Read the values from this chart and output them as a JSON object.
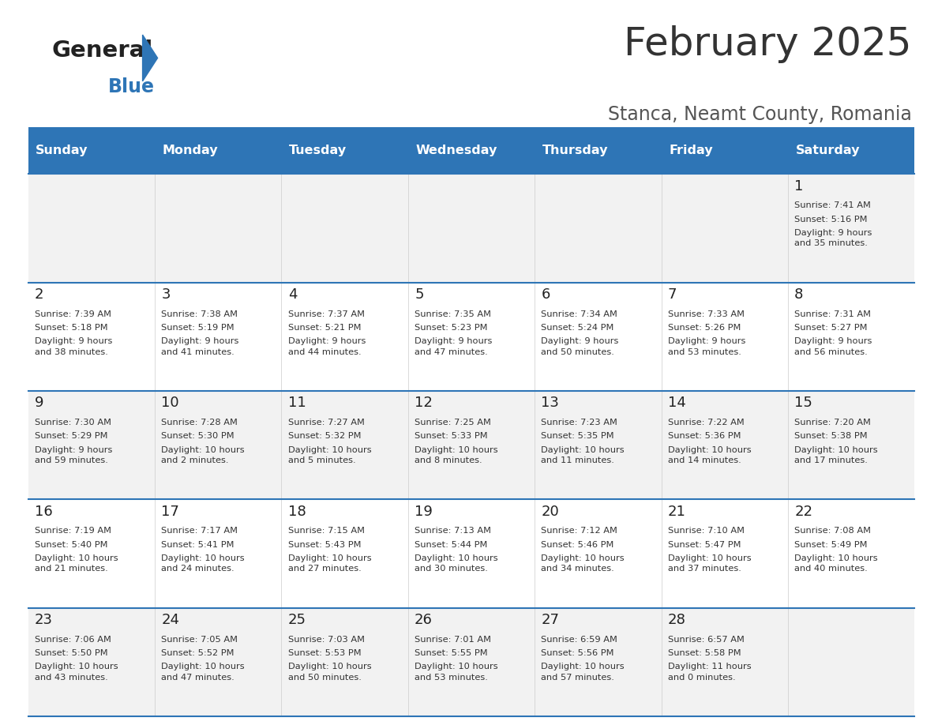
{
  "title": "February 2025",
  "subtitle": "Stanca, Neamt County, Romania",
  "header_bg": "#2E75B6",
  "header_text_color": "#FFFFFF",
  "days_of_week": [
    "Sunday",
    "Monday",
    "Tuesday",
    "Wednesday",
    "Thursday",
    "Friday",
    "Saturday"
  ],
  "cell_bg_even": "#F2F2F2",
  "cell_bg_odd": "#FFFFFF",
  "cell_text_color": "#333333",
  "grid_line_color": "#2E75B6",
  "title_color": "#333333",
  "subtitle_color": "#555555",
  "logo_general_color": "#222222",
  "logo_blue_color": "#2E75B6",
  "calendar": [
    [
      null,
      null,
      null,
      null,
      null,
      null,
      {
        "day": "1",
        "sunrise": "7:41 AM",
        "sunset": "5:16 PM",
        "daylight": "9 hours\nand 35 minutes."
      }
    ],
    [
      {
        "day": "2",
        "sunrise": "7:39 AM",
        "sunset": "5:18 PM",
        "daylight": "9 hours\nand 38 minutes."
      },
      {
        "day": "3",
        "sunrise": "7:38 AM",
        "sunset": "5:19 PM",
        "daylight": "9 hours\nand 41 minutes."
      },
      {
        "day": "4",
        "sunrise": "7:37 AM",
        "sunset": "5:21 PM",
        "daylight": "9 hours\nand 44 minutes."
      },
      {
        "day": "5",
        "sunrise": "7:35 AM",
        "sunset": "5:23 PM",
        "daylight": "9 hours\nand 47 minutes."
      },
      {
        "day": "6",
        "sunrise": "7:34 AM",
        "sunset": "5:24 PM",
        "daylight": "9 hours\nand 50 minutes."
      },
      {
        "day": "7",
        "sunrise": "7:33 AM",
        "sunset": "5:26 PM",
        "daylight": "9 hours\nand 53 minutes."
      },
      {
        "day": "8",
        "sunrise": "7:31 AM",
        "sunset": "5:27 PM",
        "daylight": "9 hours\nand 56 minutes."
      }
    ],
    [
      {
        "day": "9",
        "sunrise": "7:30 AM",
        "sunset": "5:29 PM",
        "daylight": "9 hours\nand 59 minutes."
      },
      {
        "day": "10",
        "sunrise": "7:28 AM",
        "sunset": "5:30 PM",
        "daylight": "10 hours\nand 2 minutes."
      },
      {
        "day": "11",
        "sunrise": "7:27 AM",
        "sunset": "5:32 PM",
        "daylight": "10 hours\nand 5 minutes."
      },
      {
        "day": "12",
        "sunrise": "7:25 AM",
        "sunset": "5:33 PM",
        "daylight": "10 hours\nand 8 minutes."
      },
      {
        "day": "13",
        "sunrise": "7:23 AM",
        "sunset": "5:35 PM",
        "daylight": "10 hours\nand 11 minutes."
      },
      {
        "day": "14",
        "sunrise": "7:22 AM",
        "sunset": "5:36 PM",
        "daylight": "10 hours\nand 14 minutes."
      },
      {
        "day": "15",
        "sunrise": "7:20 AM",
        "sunset": "5:38 PM",
        "daylight": "10 hours\nand 17 minutes."
      }
    ],
    [
      {
        "day": "16",
        "sunrise": "7:19 AM",
        "sunset": "5:40 PM",
        "daylight": "10 hours\nand 21 minutes."
      },
      {
        "day": "17",
        "sunrise": "7:17 AM",
        "sunset": "5:41 PM",
        "daylight": "10 hours\nand 24 minutes."
      },
      {
        "day": "18",
        "sunrise": "7:15 AM",
        "sunset": "5:43 PM",
        "daylight": "10 hours\nand 27 minutes."
      },
      {
        "day": "19",
        "sunrise": "7:13 AM",
        "sunset": "5:44 PM",
        "daylight": "10 hours\nand 30 minutes."
      },
      {
        "day": "20",
        "sunrise": "7:12 AM",
        "sunset": "5:46 PM",
        "daylight": "10 hours\nand 34 minutes."
      },
      {
        "day": "21",
        "sunrise": "7:10 AM",
        "sunset": "5:47 PM",
        "daylight": "10 hours\nand 37 minutes."
      },
      {
        "day": "22",
        "sunrise": "7:08 AM",
        "sunset": "5:49 PM",
        "daylight": "10 hours\nand 40 minutes."
      }
    ],
    [
      {
        "day": "23",
        "sunrise": "7:06 AM",
        "sunset": "5:50 PM",
        "daylight": "10 hours\nand 43 minutes."
      },
      {
        "day": "24",
        "sunrise": "7:05 AM",
        "sunset": "5:52 PM",
        "daylight": "10 hours\nand 47 minutes."
      },
      {
        "day": "25",
        "sunrise": "7:03 AM",
        "sunset": "5:53 PM",
        "daylight": "10 hours\nand 50 minutes."
      },
      {
        "day": "26",
        "sunrise": "7:01 AM",
        "sunset": "5:55 PM",
        "daylight": "10 hours\nand 53 minutes."
      },
      {
        "day": "27",
        "sunrise": "6:59 AM",
        "sunset": "5:56 PM",
        "daylight": "10 hours\nand 57 minutes."
      },
      {
        "day": "28",
        "sunrise": "6:57 AM",
        "sunset": "5:58 PM",
        "daylight": "11 hours\nand 0 minutes."
      },
      null
    ]
  ]
}
